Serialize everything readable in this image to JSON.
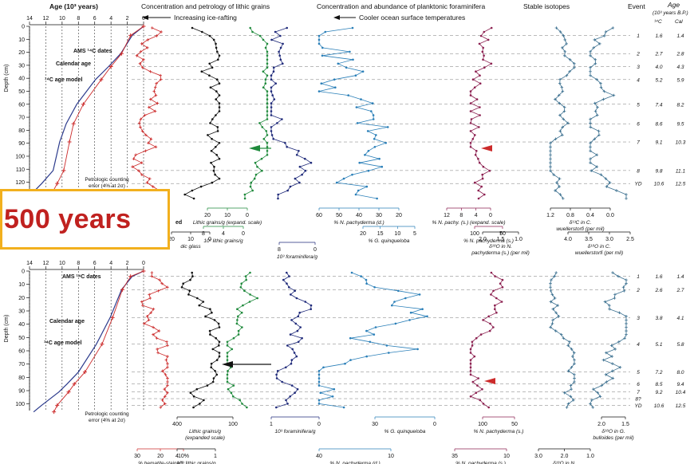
{
  "overlay": {
    "text": "500 years"
  },
  "colors": {
    "red": "#cc2b2b",
    "black": "#111111",
    "green": "#1f8a3c",
    "navy": "#1f2a7a",
    "blue": "#2a7fb8",
    "magenta": "#8c2050",
    "isotope": "#3a6f8f",
    "accent": "#f2b01e"
  },
  "headers": {
    "age": "Age (10³ years)",
    "lithic": "Concentration and petrology of lithic grains",
    "forams": "Concentration and abundance of planktonic foraminifera",
    "isotopes": "Stable isotopes",
    "event": "Event",
    "event_age": "Age",
    "event_age_unit": "(10³ years B.P.)",
    "ice_rafting": "Increasing ice-rafting",
    "cooler": "Cooler ocean surface temperatures",
    "c14": "¹⁴C",
    "cal": "Cal"
  },
  "depth_label": "Depth (cm)",
  "top": {
    "depth_ticks": [
      "0",
      "10",
      "20",
      "30",
      "40",
      "50",
      "60",
      "70",
      "80",
      "90",
      "100",
      "110",
      "120",
      "130"
    ],
    "age_ticks": [
      "14",
      "12",
      "10",
      "8",
      "6",
      "4",
      "2",
      "0"
    ],
    "labels": {
      "ams": "AMS ¹⁴C dates",
      "calendar": "Calendar age",
      "c14model": "¹⁴C age model",
      "petro1": "Petrologic counting",
      "petro2": "error (4% at 2σ)"
    },
    "events": [
      {
        "id": "1",
        "c14": "1.6",
        "cal": "1.4",
        "depth": 7
      },
      {
        "id": "2",
        "c14": "2.7",
        "cal": "2.8",
        "depth": 21
      },
      {
        "id": "3",
        "c14": "4.0",
        "cal": "4.3",
        "depth": 31
      },
      {
        "id": "4",
        "c14": "5.2",
        "cal": "5.9",
        "depth": 41
      },
      {
        "id": "5",
        "c14": "7.4",
        "cal": "8.2",
        "depth": 60
      },
      {
        "id": "6",
        "c14": "8.6",
        "cal": "9.5",
        "depth": 75
      },
      {
        "id": "7",
        "c14": "9.1",
        "cal": "10.3",
        "depth": 89
      },
      {
        "id": "8",
        "c14": "9.8",
        "cal": "11.1",
        "depth": 111
      },
      {
        "id": "YD",
        "c14": "10.6",
        "cal": "12.5",
        "depth": 121
      }
    ],
    "axes": {
      "green_ticks": [
        "20",
        "10",
        "0"
      ],
      "green_label": "Lithic grains/g (expand. scale)",
      "green2_ticks": [
        "8",
        "4",
        "0"
      ],
      "green2_label": "10² lithic grains/g",
      "red_frag": "ed",
      "black_frag_ticks": [
        "20",
        "10",
        "0"
      ],
      "black_frag": "dic glass",
      "navy_ticks": [
        "8",
        "0"
      ],
      "navy_label": "10³ foraminifera/g",
      "blue_ticks": [
        "60",
        "50",
        "40",
        "30",
        "20"
      ],
      "blue_label": "% N. pachyderma (d.)",
      "blue2_ticks": [
        "20",
        "15",
        "10",
        "5"
      ],
      "blue2_label": "% G. quinqueloba",
      "mag_ticks": [
        "12",
        "8",
        "4",
        "0"
      ],
      "mag_label": "% N. pachy. (s.) (expand. scale)",
      "mag2_ticks": [
        "100",
        "50"
      ],
      "mag2_label": "% N. pachyderma (s.)",
      "iso1_ticks": [
        "1.2",
        "0.8",
        "0.4",
        "0.0"
      ],
      "iso1_label": "δ¹³C in C.",
      "iso1_label2": "wuellerstorfi (per mil)",
      "iso2_ticks": [
        "2.0",
        "1.5",
        "1.0"
      ],
      "iso2_label": "δ¹⁸O in N.",
      "iso2_label2": "pachyderma (s.) (per mil)",
      "iso3_ticks": [
        "4.0",
        "3.5",
        "3.0",
        "2.5"
      ],
      "iso3_label": "δ¹⁸O in C.",
      "iso3_label2": "wuellerstorfi (per mil)"
    }
  },
  "bottom": {
    "depth_ticks": [
      "0",
      "10",
      "20",
      "30",
      "40",
      "50",
      "60",
      "70",
      "80",
      "90",
      "100"
    ],
    "age_ticks": [
      "14",
      "12",
      "10",
      "8",
      "6",
      "4",
      "2",
      "0"
    ],
    "labels": {
      "ams": "AMS ¹⁴C dates",
      "calendar": "Calendar age",
      "c14model": "¹⁴C age model",
      "petro1": "Petrologic counting",
      "petro2": "error (4% at 2σ)"
    },
    "events": [
      {
        "id": "1",
        "c14": "1.6",
        "cal": "1.4",
        "depth": 4
      },
      {
        "id": "2",
        "c14": "2.6",
        "cal": "2.7",
        "depth": 14
      },
      {
        "id": "3",
        "c14": "3.8",
        "cal": "4.1",
        "depth": 35
      },
      {
        "id": "4",
        "c14": "5.1",
        "cal": "5.8",
        "depth": 55
      },
      {
        "id": "5",
        "c14": "7.2",
        "cal": "8.0",
        "depth": 76
      },
      {
        "id": "6",
        "c14": "8.5",
        "cal": "9.4",
        "depth": 85
      },
      {
        "id": "7",
        "c14": "9.2",
        "cal": "10.4",
        "depth": 91
      },
      {
        "id": "8?",
        "c14": "",
        "cal": "",
        "depth": 96
      },
      {
        "id": "YD",
        "c14": "10.6",
        "cal": "12.5",
        "depth": 101
      }
    ],
    "axes": {
      "red_ticks": [
        "30",
        "20",
        "10%"
      ],
      "red_label": "% hematite-stained",
      "red_label2": "grains (ash-free)",
      "black_ticks": [
        "400",
        "100"
      ],
      "black_label": "Lithic grains/g",
      "black_label2": "(expanded scale)",
      "black2_ticks": [
        "4",
        "1"
      ],
      "black2_label": "10³ lithic grains/g",
      "black2_label_green": "Total",
      "black2_label_rest": "; Icelandic glass",
      "navy_ticks": [
        "1",
        "0"
      ],
      "navy_label": "10³ foraminifera/g",
      "blue_ticks": [
        "30",
        "0"
      ],
      "blue_label": "% G. quinqueloba",
      "blue2_ticks": [
        "40",
        "10"
      ],
      "blue2_label": "% N. pachyderma (d.)",
      "mag_ticks": [
        "100",
        "50"
      ],
      "mag_label": "% N. pachyderma (s.)",
      "mag2_ticks": [
        "35",
        "10"
      ],
      "mag2_label": "% N. pachyderma (s.)",
      "mag2_label2": "(expanded scale)",
      "iso1_ticks": [
        "2.0",
        "1.5"
      ],
      "iso1_label": "δ¹⁸O in G.",
      "iso1_label2": "bulloides (per mil)",
      "iso2_ticks": [
        "3.0",
        "2.0",
        "1.0"
      ],
      "iso2_label": "δ¹⁸O in N.",
      "iso2_label2": "pachyderma (d.) (per mil)"
    }
  },
  "chart_data": [
    {
      "type": "line",
      "panel": "top",
      "xlabel": "Age (10³ years)",
      "ylabel": "Depth (cm)",
      "ylim": [
        0,
        135
      ],
      "xlim": [
        14,
        0
      ],
      "series": [
        {
          "name": "Calendar age",
          "x": [
            0.0,
            1.4,
            2.8,
            4.3,
            5.9,
            8.2,
            9.5,
            10.3,
            11.1,
            12.5,
            13.6
          ],
          "depth": [
            0,
            7,
            21,
            31,
            41,
            60,
            75,
            89,
            111,
            121,
            128
          ]
        },
        {
          "name": "¹⁴C age model",
          "x": [
            0.0,
            1.6,
            2.7,
            4.0,
            5.2,
            7.4,
            8.6,
            9.1,
            9.8,
            10.6,
            11.2
          ],
          "depth": [
            0,
            7,
            21,
            31,
            41,
            60,
            75,
            89,
            111,
            121,
            128
          ]
        }
      ]
    },
    {
      "type": "line",
      "panel": "bottom",
      "xlabel": "Age (10³ years)",
      "ylabel": "Depth (cm)",
      "ylim": [
        0,
        105
      ],
      "xlim": [
        14,
        0
      ],
      "series": [
        {
          "name": "Calendar age",
          "x": [
            0.0,
            1.4,
            2.7,
            4.1,
            5.8,
            8.0,
            9.4,
            10.4,
            12.5,
            13.5
          ],
          "depth": [
            0,
            4,
            14,
            35,
            55,
            76,
            85,
            91,
            101,
            106
          ]
        },
        {
          "name": "¹⁴C age model",
          "x": [
            0.0,
            1.6,
            2.6,
            3.8,
            5.1,
            7.2,
            8.5,
            9.2,
            10.6,
            11.0
          ],
          "depth": [
            0,
            4,
            14,
            35,
            55,
            76,
            85,
            91,
            101,
            106
          ]
        }
      ]
    }
  ]
}
